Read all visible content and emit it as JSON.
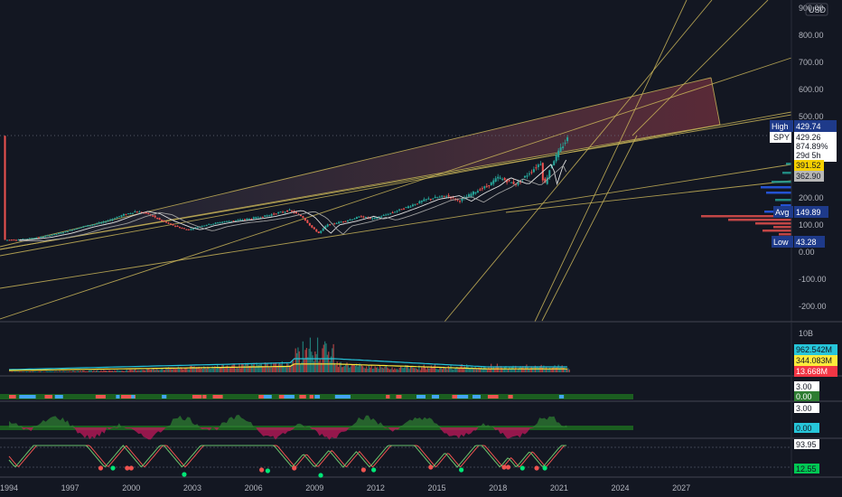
{
  "chart_data": {
    "type": "line",
    "symbol": "SPY",
    "currency": "USD",
    "x_ticks": [
      "1994",
      "1997",
      "2000",
      "2003",
      "2006",
      "2009",
      "2012",
      "2015",
      "2018",
      "2021",
      "2024",
      "2027"
    ],
    "y_ticks": [
      "900.00",
      "800.00",
      "700.00",
      "600.00",
      "500.00",
      "400.00",
      "300.00",
      "200.00",
      "100.00",
      "0.00",
      "-100.00",
      "-200.00"
    ],
    "ylim": [
      -240,
      910
    ],
    "xlim": [
      1993.75,
      2029.5
    ],
    "series": [
      {
        "values": [
          [
            1993.8,
            45
          ],
          [
            1994.5,
            46
          ],
          [
            1995.5,
            55
          ],
          [
            1996.5,
            70
          ],
          [
            1997.5,
            92
          ],
          [
            1998.6,
            110
          ],
          [
            1999.5,
            135
          ],
          [
            2000.2,
            150
          ],
          [
            2000.8,
            142
          ],
          [
            2001.5,
            115
          ],
          [
            2002.3,
            92
          ],
          [
            2002.8,
            82
          ],
          [
            2003.5,
            98
          ],
          [
            2004.5,
            112
          ],
          [
            2005.5,
            120
          ],
          [
            2006.5,
            132
          ],
          [
            2007.5,
            150
          ],
          [
            2007.8,
            154
          ],
          [
            2008.4,
            130
          ],
          [
            2008.9,
            88
          ],
          [
            2009.2,
            70
          ],
          [
            2009.6,
            100
          ],
          [
            2010.5,
            115
          ],
          [
            2011.3,
            132
          ],
          [
            2011.8,
            122
          ],
          [
            2012.5,
            138
          ],
          [
            2013.5,
            165
          ],
          [
            2014.5,
            195
          ],
          [
            2015.5,
            208
          ],
          [
            2016.1,
            188
          ],
          [
            2016.8,
            220
          ],
          [
            2017.5,
            245
          ],
          [
            2018.0,
            275
          ],
          [
            2018.9,
            250
          ],
          [
            2019.5,
            290
          ],
          [
            2020.1,
            330
          ],
          [
            2020.25,
            240
          ],
          [
            2020.6,
            320
          ],
          [
            2020.9,
            360
          ],
          [
            2021.2,
            395
          ],
          [
            2021.5,
            429
          ]
        ]
      }
    ],
    "labels": {
      "high_label": "High",
      "high_value": "429.74",
      "spy_value": "429.26",
      "spy_pct": "874.89%",
      "spy_time": "29d 5h",
      "level_391": "391.52",
      "level_362": "362.90",
      "avg_label": "Avg",
      "avg_value": "149.89",
      "low_label": "Low",
      "low_value": "43.28"
    },
    "volume_pane": {
      "axis_label": "10B",
      "values": [
        "962.542M",
        "344.083M",
        "13.668M"
      ],
      "colors": [
        "#26c6da",
        "#ffeb3b",
        "#f23645"
      ]
    },
    "indicator_panes": [
      {
        "values": [
          "3.00",
          "0.00"
        ]
      },
      {
        "values": [
          "3.00",
          "0.00"
        ]
      },
      {
        "values": [
          "93.95",
          "12.55"
        ]
      }
    ],
    "grid": false,
    "colors": {
      "background": "#131722",
      "bull": "#26a69a",
      "bear": "#ef5350",
      "trendline": "#c9b458",
      "axis_text": "#b2b5be"
    }
  }
}
